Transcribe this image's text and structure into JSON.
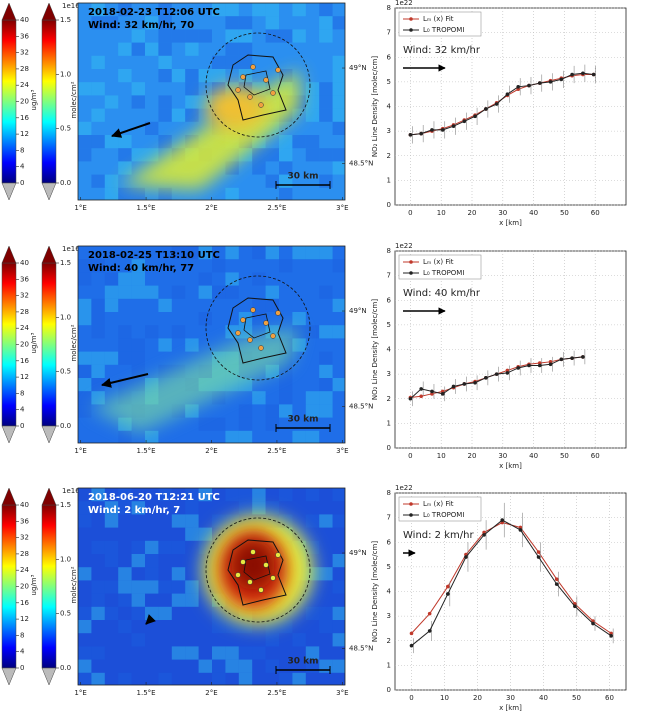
{
  "chart_data": [
    {
      "type": "colorbar",
      "label": "ug/m³",
      "ylim": [
        0,
        40
      ],
      "yticks": [
        0,
        4,
        8,
        12,
        16,
        20,
        24,
        28,
        32,
        36,
        40
      ],
      "colors": [
        "#00007f",
        "#0000ff",
        "#007fff",
        "#00ffff",
        "#7fff7f",
        "#ffff00",
        "#ff7f00",
        "#ff0000",
        "#7f0000"
      ]
    },
    {
      "type": "colorbar",
      "label": "molec/cm²",
      "offset_label": "1e16",
      "ylim": [
        0,
        1.5
      ],
      "yticks": [
        {
          "value": 0,
          "label": "0.0"
        },
        0.5,
        {
          "value": 1,
          "label": "1.0"
        },
        1.5
      ],
      "colors": [
        "#00007f",
        "#0000ff",
        "#007fff",
        "#00ffff",
        "#7fff7f",
        "#ffff00",
        "#ff7f00",
        "#ff0000",
        "#7f0000"
      ]
    },
    {
      "type": "map",
      "title": "2018-02-23 T12:06 UTC",
      "subtitle": "Wind: 32 km/hr, 70",
      "title_color": "#000000",
      "xlim": [
        0.98,
        3.02
      ],
      "xticks": [
        {
          "value": 1,
          "label": "1°E"
        },
        {
          "value": 1.5,
          "label": "1.5°E"
        },
        {
          "value": 2,
          "label": "2°E"
        },
        {
          "value": 2.5,
          "label": "2.5°E"
        },
        {
          "value": 3,
          "label": "3°E"
        }
      ],
      "ylim": [
        48.31,
        49.34
      ],
      "yticks": [
        {
          "value": 49,
          "label": "49°N"
        },
        {
          "value": 48.5,
          "label": "48.5°N"
        }
      ],
      "scale_label": "30 km"
    },
    {
      "type": "line",
      "offset_label": "1e22",
      "ylabel": "NO₂ Line Density [molec/cm]",
      "xlabel": "x [km]",
      "annotation": "Wind: 32 km/hr",
      "legend": "upper left",
      "grid": true,
      "xlim": [
        -5,
        70
      ],
      "xticks": [
        0,
        10,
        20,
        30,
        40,
        50,
        60
      ],
      "ylim": [
        0,
        8
      ],
      "yticks": [
        0,
        1,
        2,
        3,
        4,
        5,
        6,
        7,
        8
      ],
      "x": [
        0,
        3.5,
        7,
        10.5,
        14,
        17.5,
        21,
        24.5,
        28,
        31.5,
        35,
        38.5,
        42,
        45.5,
        49,
        52.5,
        56,
        59.5
      ],
      "series": [
        {
          "name": "Lₘ (x) Fit",
          "color": "#c0392b",
          "values": [
            2.85,
            2.9,
            3.0,
            3.1,
            3.25,
            3.45,
            3.65,
            3.9,
            4.15,
            4.45,
            4.7,
            4.85,
            4.95,
            5.05,
            5.15,
            5.25,
            5.3,
            5.3
          ]
        },
        {
          "name": "L₀ TROPOMI",
          "color": "#222222",
          "values": [
            2.85,
            2.9,
            3.05,
            3.05,
            3.2,
            3.4,
            3.6,
            3.9,
            4.1,
            4.5,
            4.8,
            4.85,
            4.95,
            5.0,
            5.1,
            5.3,
            5.35,
            5.3
          ],
          "errors": [
            0.35,
            0.35,
            0.35,
            0.35,
            0.35,
            0.35,
            0.35,
            0.35,
            0.35,
            0.35,
            0.35,
            0.35,
            0.35,
            0.35,
            0.35,
            0.35,
            0.35,
            0.35
          ]
        }
      ]
    },
    {
      "type": "colorbar",
      "label": "ug/m³",
      "ylim": [
        0,
        40
      ],
      "yticks": [
        0,
        4,
        8,
        12,
        16,
        20,
        24,
        28,
        32,
        36,
        40
      ],
      "colors": [
        "#00007f",
        "#0000ff",
        "#007fff",
        "#00ffff",
        "#7fff7f",
        "#ffff00",
        "#ff7f00",
        "#ff0000",
        "#7f0000"
      ]
    },
    {
      "type": "colorbar",
      "label": "molec/cm²",
      "offset_label": "1e16",
      "ylim": [
        0,
        1.5
      ],
      "yticks": [
        {
          "value": 0,
          "label": "0.0"
        },
        0.5,
        {
          "value": 1,
          "label": "1.0"
        },
        1.5
      ],
      "colors": [
        "#00007f",
        "#0000ff",
        "#007fff",
        "#00ffff",
        "#7fff7f",
        "#ffff00",
        "#ff7f00",
        "#ff0000",
        "#7f0000"
      ]
    },
    {
      "type": "map",
      "title": "2018-02-25 T13:10 UTC",
      "subtitle": "Wind: 40 km/hr, 77",
      "title_color": "#000000",
      "xlim": [
        0.98,
        3.02
      ],
      "xticks": [
        {
          "value": 1,
          "label": "1°E"
        },
        {
          "value": 1.5,
          "label": "1.5°E"
        },
        {
          "value": 2,
          "label": "2°E"
        },
        {
          "value": 2.5,
          "label": "2.5°E"
        },
        {
          "value": 3,
          "label": "3°E"
        }
      ],
      "ylim": [
        48.31,
        49.34
      ],
      "yticks": [
        {
          "value": 49,
          "label": "49°N"
        },
        {
          "value": 48.5,
          "label": "48.5°N"
        }
      ],
      "scale_label": "30 km"
    },
    {
      "type": "line",
      "offset_label": "1e22",
      "ylabel": "NO₂ Line Density [molec/cm]",
      "xlabel": "x [km]",
      "annotation": "Wind: 40 km/hr",
      "legend": "upper left",
      "grid": true,
      "xlim": [
        -5,
        70
      ],
      "xticks": [
        0,
        10,
        20,
        30,
        40,
        50,
        60
      ],
      "ylim": [
        0,
        8
      ],
      "yticks": [
        0,
        1,
        2,
        3,
        4,
        5,
        6,
        7,
        8
      ],
      "x": [
        0,
        3.5,
        7,
        10.5,
        14,
        17.5,
        21,
        24.5,
        28,
        31.5,
        35,
        38.5,
        42,
        45.5,
        49,
        52.5,
        56
      ],
      "series": [
        {
          "name": "Lₘ (x) Fit",
          "color": "#c0392b",
          "values": [
            2.05,
            2.1,
            2.2,
            2.3,
            2.45,
            2.6,
            2.7,
            2.85,
            3.0,
            3.15,
            3.3,
            3.4,
            3.45,
            3.5,
            3.6,
            3.65,
            3.7
          ]
        },
        {
          "name": "L₀ TROPOMI",
          "color": "#222222",
          "values": [
            2.0,
            2.4,
            2.3,
            2.2,
            2.5,
            2.6,
            2.65,
            2.85,
            3.0,
            3.05,
            3.25,
            3.35,
            3.35,
            3.4,
            3.6,
            3.65,
            3.7
          ],
          "errors": [
            0.3,
            0.3,
            0.3,
            0.3,
            0.3,
            0.3,
            0.3,
            0.3,
            0.3,
            0.3,
            0.3,
            0.3,
            0.3,
            0.3,
            0.3,
            0.3,
            0.3
          ]
        }
      ]
    },
    {
      "type": "colorbar",
      "label": "ug/m³",
      "ylim": [
        0,
        40
      ],
      "yticks": [
        0,
        4,
        8,
        12,
        16,
        20,
        24,
        28,
        32,
        36,
        40
      ],
      "colors": [
        "#00007f",
        "#0000ff",
        "#007fff",
        "#00ffff",
        "#7fff7f",
        "#ffff00",
        "#ff7f00",
        "#ff0000",
        "#7f0000"
      ]
    },
    {
      "type": "colorbar",
      "label": "molec/cm²",
      "offset_label": "1e16",
      "ylim": [
        0,
        1.5
      ],
      "yticks": [
        {
          "value": 0,
          "label": "0.0"
        },
        0.5,
        {
          "value": 1,
          "label": "1.0"
        },
        1.5
      ],
      "colors": [
        "#00007f",
        "#0000ff",
        "#007fff",
        "#00ffff",
        "#7fff7f",
        "#ffff00",
        "#ff7f00",
        "#ff0000",
        "#7f0000"
      ]
    },
    {
      "type": "map",
      "title": "2018-06-20 T12:21 UTC",
      "subtitle": "Wind: 2 km/hr, 7",
      "title_color": "#ffffff",
      "xlim": [
        0.98,
        3.02
      ],
      "xticks": [
        {
          "value": 1,
          "label": "1°E"
        },
        {
          "value": 1.5,
          "label": "1.5°E"
        },
        {
          "value": 2,
          "label": "2°E"
        },
        {
          "value": 2.5,
          "label": "2.5°E"
        },
        {
          "value": 3,
          "label": "3°E"
        }
      ],
      "ylim": [
        48.31,
        49.34
      ],
      "yticks": [
        {
          "value": 49,
          "label": "49°N"
        },
        {
          "value": 48.5,
          "label": "48.5°N"
        }
      ],
      "scale_label": "30 km"
    },
    {
      "type": "line",
      "offset_label": "1e22",
      "ylabel": "NO₂ Line Density [molec/cm]",
      "xlabel": "x [km]",
      "annotation": "Wind: 2 km/hr",
      "legend": "upper left",
      "grid": true,
      "xlim": [
        -5,
        65
      ],
      "xticks": [
        0,
        10,
        20,
        30,
        40,
        50,
        60
      ],
      "ylim": [
        0,
        8
      ],
      "yticks": [
        0,
        1,
        2,
        3,
        4,
        5,
        6,
        7,
        8
      ],
      "x": [
        0,
        5.5,
        11,
        16.5,
        22,
        27.5,
        33,
        38.5,
        44,
        49.5,
        55,
        60.5
      ],
      "series": [
        {
          "name": "Lₘ (x) Fit",
          "color": "#c0392b",
          "values": [
            2.3,
            3.1,
            4.2,
            5.5,
            6.4,
            6.8,
            6.6,
            5.6,
            4.5,
            3.5,
            2.8,
            2.3
          ]
        },
        {
          "name": "L₀ TROPOMI",
          "color": "#222222",
          "values": [
            1.8,
            2.4,
            3.9,
            5.4,
            6.3,
            6.9,
            6.5,
            5.4,
            4.3,
            3.4,
            2.7,
            2.2
          ],
          "errors": [
            0.3,
            0.4,
            0.5,
            0.6,
            0.6,
            0.7,
            0.7,
            0.6,
            0.5,
            0.4,
            0.3,
            0.3
          ]
        }
      ]
    }
  ]
}
